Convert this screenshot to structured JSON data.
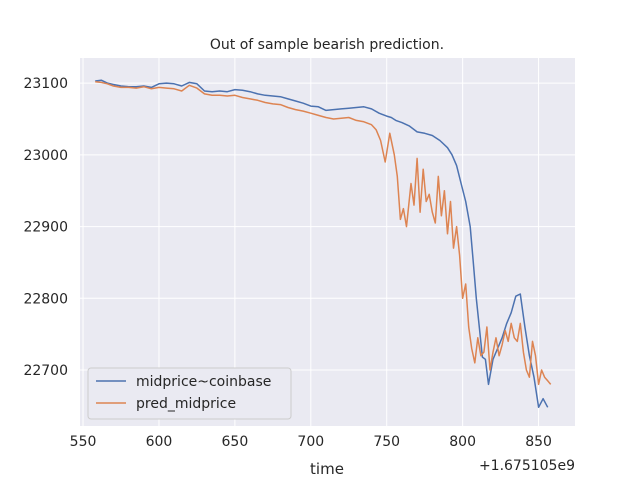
{
  "chart_data": {
    "type": "line",
    "title": "Out of sample bearish prediction.",
    "xlabel": "time",
    "ylabel": "",
    "x_offset_label": "+1.675105e9",
    "xlim": [
      548,
      874
    ],
    "ylim": [
      22622,
      23135
    ],
    "x_ticks": [
      550,
      600,
      650,
      700,
      750,
      800,
      850
    ],
    "y_ticks": [
      22700,
      22800,
      22900,
      23000,
      23100
    ],
    "grid": true,
    "legend_position": "lower-left",
    "colors": {
      "background": "#eaeaf2",
      "grid": "#ffffff"
    },
    "series": [
      {
        "name": "midprice~coinbase",
        "color": "#4c72b0",
        "x": [
          558,
          562,
          566,
          570,
          575,
          580,
          585,
          590,
          595,
          600,
          605,
          610,
          615,
          620,
          625,
          630,
          635,
          640,
          645,
          650,
          655,
          660,
          665,
          670,
          675,
          680,
          685,
          690,
          695,
          700,
          705,
          710,
          715,
          720,
          725,
          730,
          735,
          740,
          745,
          750,
          753,
          756,
          760,
          765,
          770,
          775,
          780,
          785,
          790,
          793,
          796,
          799,
          802,
          805,
          807,
          809,
          811,
          813,
          815,
          817,
          820,
          823,
          826,
          829,
          832,
          835,
          838,
          841,
          844,
          847,
          850,
          853,
          856
        ],
        "y": [
          23103,
          23104,
          23100,
          23098,
          23096,
          23095,
          23095,
          23096,
          23094,
          23099,
          23100,
          23099,
          23096,
          23101,
          23099,
          23089,
          23088,
          23089,
          23088,
          23091,
          23090,
          23088,
          23085,
          23083,
          23082,
          23081,
          23078,
          23075,
          23072,
          23068,
          23067,
          23062,
          23063,
          23064,
          23065,
          23066,
          23067,
          23064,
          23058,
          23054,
          23052,
          23048,
          23045,
          23040,
          23032,
          23030,
          23027,
          23020,
          23010,
          23000,
          22985,
          22960,
          22935,
          22900,
          22850,
          22800,
          22760,
          22718,
          22715,
          22680,
          22715,
          22730,
          22745,
          22765,
          22780,
          22803,
          22806,
          22760,
          22720,
          22690,
          22648,
          22660,
          22648
        ]
      },
      {
        "name": "pred_midprice",
        "color": "#dd8452",
        "x": [
          558,
          562,
          566,
          570,
          575,
          580,
          585,
          590,
          595,
          600,
          605,
          610,
          615,
          620,
          625,
          630,
          635,
          640,
          645,
          650,
          655,
          660,
          665,
          670,
          675,
          680,
          685,
          690,
          695,
          700,
          705,
          710,
          715,
          720,
          725,
          730,
          735,
          740,
          743,
          746,
          749,
          752,
          755,
          757,
          759,
          761,
          763,
          766,
          768,
          770,
          772,
          774,
          776,
          778,
          780,
          782,
          784,
          786,
          788,
          790,
          792,
          794,
          796,
          798,
          800,
          802,
          804,
          806,
          808,
          810,
          812,
          814,
          816,
          818,
          820,
          822,
          824,
          826,
          828,
          830,
          832,
          834,
          836,
          838,
          840,
          842,
          844,
          846,
          848,
          850,
          852,
          854,
          856,
          858
        ],
        "y": [
          23102,
          23101,
          23099,
          23096,
          23094,
          23094,
          23093,
          23095,
          23092,
          23094,
          23093,
          23092,
          23089,
          23097,
          23093,
          23085,
          23083,
          23083,
          23082,
          23083,
          23080,
          23078,
          23076,
          23073,
          23071,
          23070,
          23066,
          23063,
          23061,
          23058,
          23055,
          23052,
          23050,
          23051,
          23052,
          23048,
          23046,
          23042,
          23035,
          23020,
          22990,
          23030,
          23000,
          22970,
          22910,
          22925,
          22900,
          22960,
          22930,
          22995,
          22920,
          22980,
          22935,
          22945,
          22920,
          22905,
          22970,
          22915,
          22950,
          22890,
          22935,
          22870,
          22900,
          22860,
          22800,
          22820,
          22760,
          22730,
          22710,
          22745,
          22720,
          22725,
          22760,
          22700,
          22725,
          22745,
          22720,
          22735,
          22755,
          22740,
          22765,
          22745,
          22740,
          22765,
          22725,
          22700,
          22690,
          22740,
          22720,
          22680,
          22700,
          22690,
          22685,
          22680
        ]
      }
    ]
  }
}
